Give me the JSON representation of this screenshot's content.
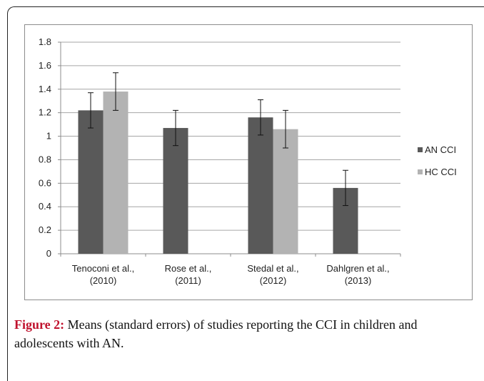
{
  "chart_data": {
    "type": "bar",
    "title": "",
    "xlabel": "",
    "ylabel": "",
    "ylim": [
      0,
      1.8
    ],
    "yticks": [
      "0",
      "0.2",
      "0.4",
      "0.6",
      "0.8",
      "1",
      "1.2",
      "1.4",
      "1.6",
      "1.8"
    ],
    "grid": true,
    "legend_position": "right",
    "categories": [
      [
        "Tenoconi et al.,",
        "(2010)"
      ],
      [
        "Rose et al.,",
        "(2011)"
      ],
      [
        "Stedal et al.,",
        "(2012)"
      ],
      [
        "Dahlgren et al.,",
        "(2013)"
      ]
    ],
    "series": [
      {
        "name": "AN CCI",
        "color": "#595959",
        "values": [
          1.22,
          1.07,
          1.16,
          0.56
        ],
        "errors": [
          0.15,
          0.15,
          0.15,
          0.15
        ]
      },
      {
        "name": "HC CCI",
        "color": "#b3b3b3",
        "values": [
          1.38,
          null,
          1.06,
          null
        ],
        "errors": [
          0.16,
          null,
          0.16,
          null
        ]
      }
    ]
  },
  "caption": {
    "label": "Figure 2:",
    "text": " Means (standard errors) of studies reporting the CCI in children and adolescents with AN."
  }
}
